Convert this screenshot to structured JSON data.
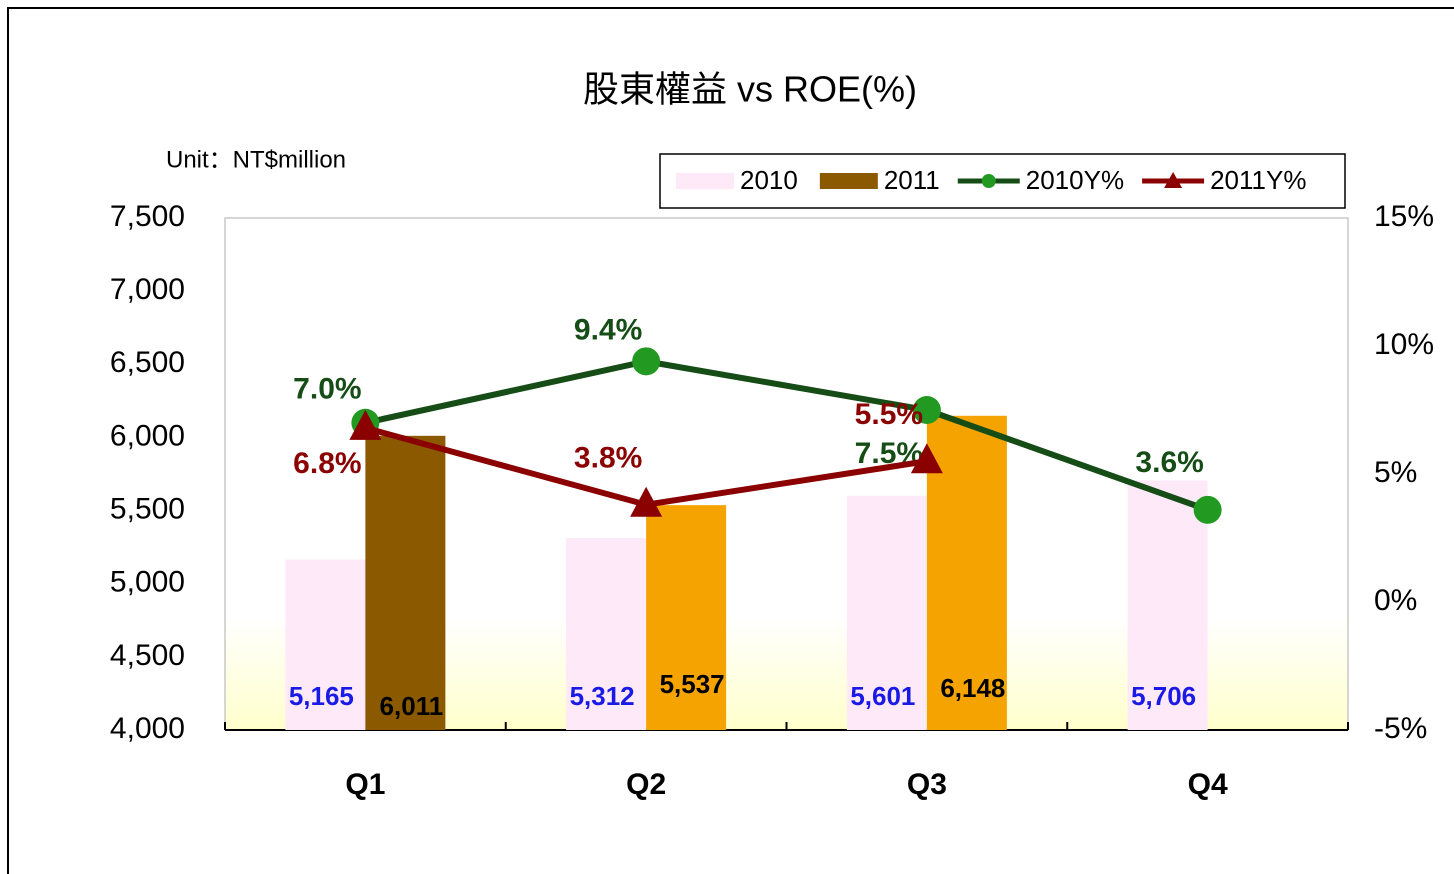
{
  "chart_data": {
    "type": "bar",
    "title": "股東權益 vs ROE(%)",
    "unit_label": "Unit：NT$million",
    "categories": [
      "Q1",
      "Q2",
      "Q3",
      "Q4"
    ],
    "ylim": [
      4000,
      7500
    ],
    "yticks": [
      {
        "value": 4000,
        "label": "4,000"
      },
      {
        "value": 4500,
        "label": "4,500"
      },
      {
        "value": 5000,
        "label": "5,000"
      },
      {
        "value": 5500,
        "label": "5,500"
      },
      {
        "value": 6000,
        "label": "6,000"
      },
      {
        "value": 6500,
        "label": "6,500"
      },
      {
        "value": 7000,
        "label": "7,000"
      },
      {
        "value": 7500,
        "label": "7,500"
      }
    ],
    "y2lim": [
      -5,
      15
    ],
    "y2ticks": [
      {
        "value": -5,
        "label": "-5%"
      },
      {
        "value": 0,
        "label": "0%"
      },
      {
        "value": 5,
        "label": "5%"
      },
      {
        "value": 10,
        "label": "10%"
      },
      {
        "value": 15,
        "label": "15%"
      }
    ],
    "legend": "top-right",
    "series": [
      {
        "name": "2010",
        "type": "bar",
        "color": "#fde9f7",
        "label_color": "#1a1ae6",
        "values": [
          5165,
          5312,
          5601,
          5706
        ],
        "value_labels": [
          "5,165",
          "5,312",
          "5,601",
          "5,706"
        ]
      },
      {
        "name": "2011",
        "type": "bar",
        "color": "#8b5a00",
        "colors": [
          "#8b5a00",
          "#f5a300",
          "#f5a300",
          "#f5a300"
        ],
        "label_color": "#000000",
        "values": [
          6011,
          5537,
          6148,
          null
        ],
        "value_labels": [
          "6,011",
          "5,537",
          "6,148",
          null
        ]
      },
      {
        "name": "2010Y%",
        "type": "line",
        "axis": "y2",
        "color": "#164d16",
        "marker_color": "#229a22",
        "marker": "circle",
        "values": [
          7.0,
          9.4,
          7.5,
          3.6
        ],
        "value_labels": [
          "7.0%",
          "9.4%",
          "7.5%",
          "3.6%"
        ]
      },
      {
        "name": "2011Y%",
        "type": "line",
        "axis": "y2",
        "color": "#8b0000",
        "marker_color": "#8b0000",
        "marker": "triangle",
        "values": [
          6.8,
          3.8,
          5.5,
          null
        ],
        "value_labels": [
          "6.8%",
          "3.8%",
          "5.5%",
          null
        ]
      }
    ]
  }
}
